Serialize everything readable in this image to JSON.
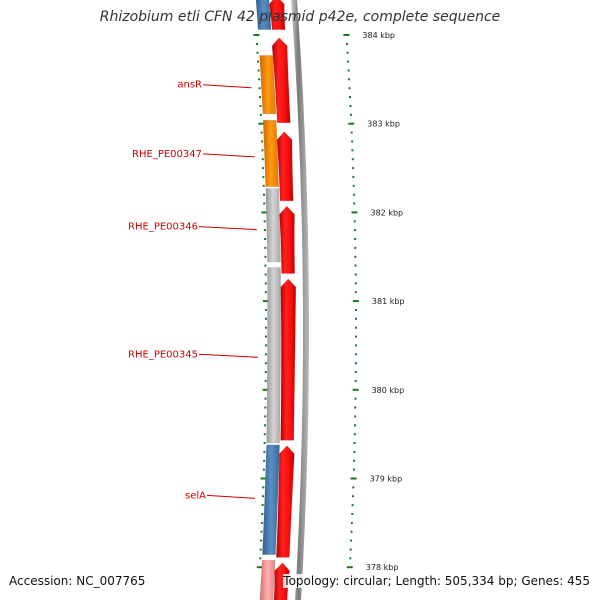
{
  "title": "Rhizobium etli CFN 42 plasmid p42e, complete sequence",
  "footer": {
    "accession": "Accession: NC_007765",
    "summary": "Topology: circular; Length: 505,334 bp; Genes: 455"
  },
  "colors": {
    "cds_forward": "#ff0000",
    "cds_reverse_blue": "#4a7fb5",
    "cds_reverse_orange": "#ff8c00",
    "cds_reverse_gray": "#c0c0c0",
    "backbone": "#888888",
    "tick": "#1a7a1a",
    "gene_label": "#cc0000"
  },
  "diagram": {
    "scale_kbp": [
      {
        "kbp": 384,
        "label": "384 kbp"
      },
      {
        "kbp": 383,
        "label": "383 kbp"
      },
      {
        "kbp": 382,
        "label": "382 kbp"
      },
      {
        "kbp": 381,
        "label": "381 kbp"
      },
      {
        "kbp": 380,
        "label": "380 kbp"
      },
      {
        "kbp": 379,
        "label": "379 kbp"
      },
      {
        "kbp": 378,
        "label": "378 kbp"
      }
    ],
    "visible_range_kbp": [
      377.6,
      384.45
    ],
    "forward_genes": [
      {
        "start": 384.45,
        "end": 384.05
      },
      {
        "start": 383.98,
        "end": 383.0
      },
      {
        "start": 382.92,
        "end": 382.12
      },
      {
        "start": 382.08,
        "end": 381.3
      },
      {
        "start": 381.26,
        "end": 379.42
      },
      {
        "start": 379.38,
        "end": 378.1
      },
      {
        "start": 378.06,
        "end": 377.6
      }
    ],
    "reverse_genes": [
      {
        "start": 384.05,
        "end": 384.45,
        "color": "blue"
      },
      {
        "start": 383.1,
        "end": 383.78,
        "color": "orange"
      },
      {
        "start": 382.28,
        "end": 383.05,
        "color": "orange"
      },
      {
        "start": 381.43,
        "end": 382.28,
        "color": "gray"
      },
      {
        "start": 379.39,
        "end": 381.39,
        "color": "gray"
      },
      {
        "start": 378.13,
        "end": 379.39,
        "color": "blue"
      },
      {
        "start": 377.6,
        "end": 378.09,
        "color": "pink"
      }
    ],
    "gene_labels": [
      {
        "text": "ansR",
        "kbp": 383.44
      },
      {
        "text": "RHE_PE00347",
        "kbp": 382.66
      },
      {
        "text": "RHE_PE00346",
        "kbp": 381.84
      },
      {
        "text": "RHE_PE00345",
        "kbp": 380.4
      },
      {
        "text": "selA",
        "kbp": 378.81
      }
    ]
  }
}
